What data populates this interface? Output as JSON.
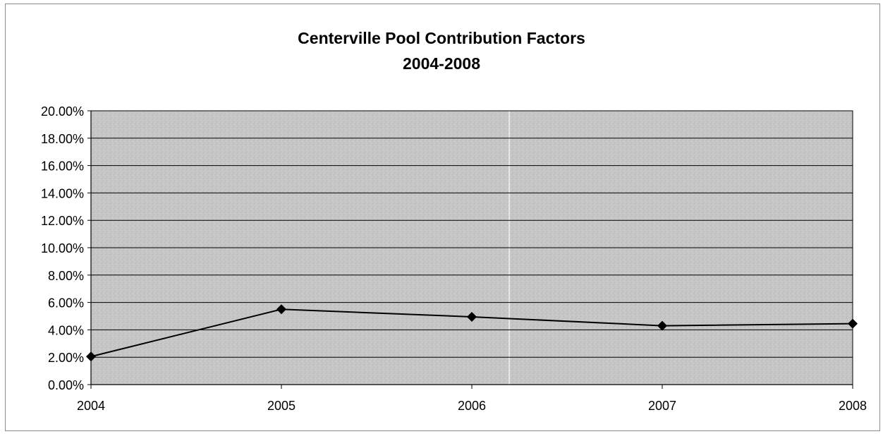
{
  "chart_data": {
    "type": "line",
    "title": "Centerville Pool Contribution Factors",
    "subtitle": "2004-2008",
    "categories": [
      "2004",
      "2005",
      "2006",
      "2007",
      "2008"
    ],
    "series": [
      {
        "values": [
          2.05,
          5.5,
          4.95,
          4.3,
          4.45
        ]
      }
    ],
    "ylim": [
      0,
      20
    ],
    "yticks": [
      "0.00%",
      "2.00%",
      "4.00%",
      "6.00%",
      "8.00%",
      "10.00%",
      "12.00%",
      "14.00%",
      "16.00%",
      "18.00%",
      "20.00%"
    ],
    "grid": true,
    "marker": "diamond",
    "colors": {
      "plot_background": "#c3c3c3",
      "line": "#000000",
      "gridline": "#000000"
    }
  }
}
